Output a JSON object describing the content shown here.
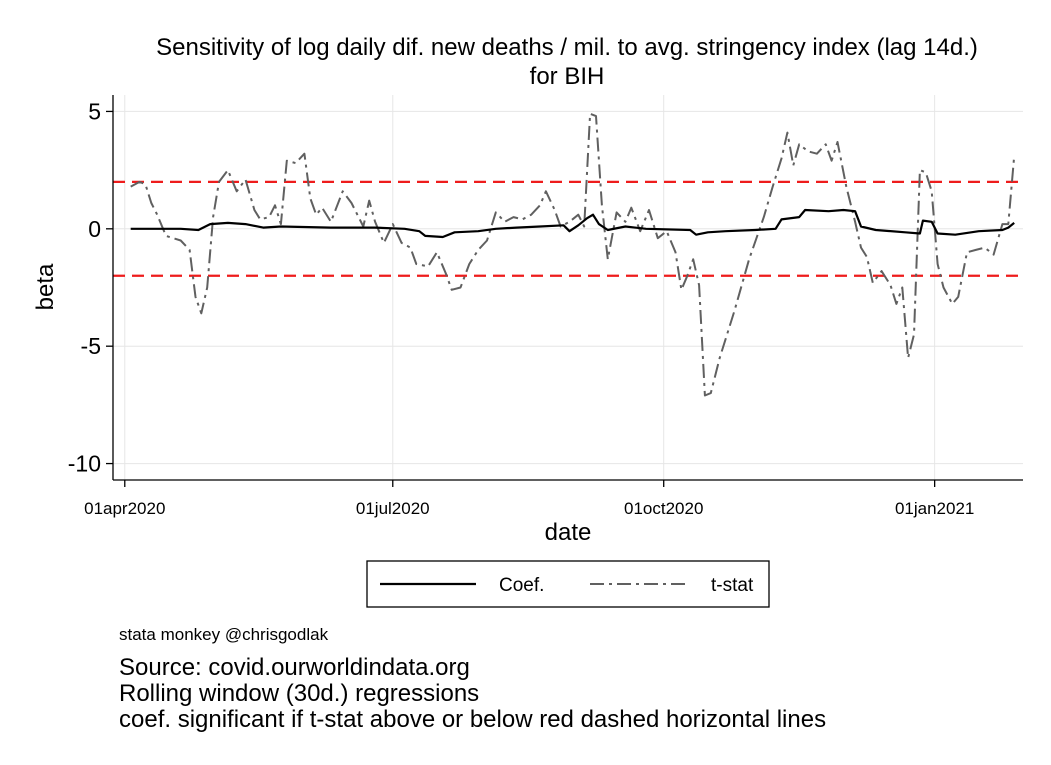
{
  "chart_data": {
    "type": "line",
    "title_lines": [
      "Sensitivity of log daily dif. new deaths / mil. to avg. stringency index (lag 14d.)",
      "for BIH"
    ],
    "xlabel": "date",
    "ylabel": "beta",
    "x_ticks": [
      "2020-04-01",
      "2020-07-01",
      "2020-10-01",
      "2021-01-01"
    ],
    "x_tick_labels": [
      "01apr2020",
      "01jul2020",
      "01oct2020",
      "01jan2021"
    ],
    "y_ticks": [
      5,
      0,
      -5,
      -10
    ],
    "y_tick_labels": [
      "5",
      "0",
      "-5",
      "-10"
    ],
    "xlim": [
      "2020-03-28",
      "2021-01-31"
    ],
    "ylim": [
      -10.7,
      5.7
    ],
    "grid": true,
    "reference_lines": [
      2,
      -2
    ],
    "reference_line_color": "#ee1c1c",
    "legend_position": "bottom",
    "series": [
      {
        "name": "Coef.",
        "color": "#000000",
        "style": "solid",
        "points": [
          [
            "2020-04-03",
            0.0
          ],
          [
            "2020-04-20",
            0.0
          ],
          [
            "2020-04-26",
            -0.05
          ],
          [
            "2020-04-30",
            0.2
          ],
          [
            "2020-05-06",
            0.25
          ],
          [
            "2020-05-12",
            0.2
          ],
          [
            "2020-05-18",
            0.05
          ],
          [
            "2020-05-24",
            0.1
          ],
          [
            "2020-06-10",
            0.05
          ],
          [
            "2020-06-25",
            0.05
          ],
          [
            "2020-07-05",
            0.0
          ],
          [
            "2020-07-10",
            -0.1
          ],
          [
            "2020-07-12",
            -0.3
          ],
          [
            "2020-07-18",
            -0.35
          ],
          [
            "2020-07-22",
            -0.15
          ],
          [
            "2020-07-30",
            -0.1
          ],
          [
            "2020-08-05",
            0.0
          ],
          [
            "2020-08-12",
            0.05
          ],
          [
            "2020-08-20",
            0.1
          ],
          [
            "2020-08-28",
            0.15
          ],
          [
            "2020-08-30",
            -0.1
          ],
          [
            "2020-09-02",
            0.15
          ],
          [
            "2020-09-05",
            0.45
          ],
          [
            "2020-09-07",
            0.6
          ],
          [
            "2020-09-09",
            0.2
          ],
          [
            "2020-09-12",
            -0.05
          ],
          [
            "2020-09-18",
            0.1
          ],
          [
            "2020-09-25",
            0.0
          ],
          [
            "2020-10-10",
            -0.05
          ],
          [
            "2020-10-12",
            -0.25
          ],
          [
            "2020-10-16",
            -0.15
          ],
          [
            "2020-10-22",
            -0.1
          ],
          [
            "2020-11-01",
            -0.05
          ],
          [
            "2020-11-08",
            0.0
          ],
          [
            "2020-11-10",
            0.4
          ],
          [
            "2020-11-16",
            0.5
          ],
          [
            "2020-11-18",
            0.8
          ],
          [
            "2020-11-26",
            0.75
          ],
          [
            "2020-12-01",
            0.8
          ],
          [
            "2020-12-05",
            0.75
          ],
          [
            "2020-12-07",
            0.1
          ],
          [
            "2020-12-12",
            -0.05
          ],
          [
            "2020-12-22",
            -0.15
          ],
          [
            "2020-12-27",
            -0.2
          ],
          [
            "2020-12-28",
            0.35
          ],
          [
            "2020-12-31",
            0.3
          ],
          [
            "2021-01-02",
            -0.2
          ],
          [
            "2021-01-08",
            -0.25
          ],
          [
            "2021-01-16",
            -0.1
          ],
          [
            "2021-01-24",
            -0.05
          ],
          [
            "2021-01-26",
            0.05
          ],
          [
            "2021-01-28",
            0.25
          ]
        ]
      },
      {
        "name": "t-stat",
        "color": "#606060",
        "style": "dashdot",
        "points": [
          [
            "2020-04-03",
            1.8
          ],
          [
            "2020-04-06",
            2.0
          ],
          [
            "2020-04-08",
            1.9
          ],
          [
            "2020-04-10",
            1.1
          ],
          [
            "2020-04-12",
            0.6
          ],
          [
            "2020-04-15",
            -0.3
          ],
          [
            "2020-04-20",
            -0.5
          ],
          [
            "2020-04-23",
            -0.9
          ],
          [
            "2020-04-25",
            -2.9
          ],
          [
            "2020-04-27",
            -3.6
          ],
          [
            "2020-04-29",
            -2.5
          ],
          [
            "2020-05-01",
            0.5
          ],
          [
            "2020-05-03",
            2.0
          ],
          [
            "2020-05-06",
            2.5
          ],
          [
            "2020-05-09",
            1.6
          ],
          [
            "2020-05-12",
            2.1
          ],
          [
            "2020-05-15",
            0.8
          ],
          [
            "2020-05-17",
            0.4
          ],
          [
            "2020-05-20",
            0.5
          ],
          [
            "2020-05-22",
            1.0
          ],
          [
            "2020-05-24",
            0.2
          ],
          [
            "2020-05-26",
            2.9
          ],
          [
            "2020-05-29",
            2.8
          ],
          [
            "2020-06-01",
            3.2
          ],
          [
            "2020-06-03",
            1.3
          ],
          [
            "2020-06-05",
            0.6
          ],
          [
            "2020-06-07",
            0.9
          ],
          [
            "2020-06-10",
            0.3
          ],
          [
            "2020-06-14",
            1.6
          ],
          [
            "2020-06-17",
            1.1
          ],
          [
            "2020-06-21",
            0.1
          ],
          [
            "2020-06-23",
            1.2
          ],
          [
            "2020-06-25",
            0.3
          ],
          [
            "2020-06-28",
            -0.6
          ],
          [
            "2020-07-01",
            0.2
          ],
          [
            "2020-07-04",
            -0.6
          ],
          [
            "2020-07-07",
            -0.8
          ],
          [
            "2020-07-09",
            -1.5
          ],
          [
            "2020-07-13",
            -1.6
          ],
          [
            "2020-07-16",
            -1.0
          ],
          [
            "2020-07-19",
            -1.9
          ],
          [
            "2020-07-21",
            -2.6
          ],
          [
            "2020-07-24",
            -2.5
          ],
          [
            "2020-07-27",
            -1.5
          ],
          [
            "2020-07-30",
            -0.9
          ],
          [
            "2020-08-02",
            -0.5
          ],
          [
            "2020-08-05",
            0.7
          ],
          [
            "2020-08-08",
            0.3
          ],
          [
            "2020-08-11",
            0.5
          ],
          [
            "2020-08-14",
            0.4
          ],
          [
            "2020-08-17",
            0.6
          ],
          [
            "2020-08-20",
            1.0
          ],
          [
            "2020-08-22",
            1.6
          ],
          [
            "2020-08-25",
            0.8
          ],
          [
            "2020-08-27",
            0.1
          ],
          [
            "2020-08-30",
            0.3
          ],
          [
            "2020-09-02",
            0.6
          ],
          [
            "2020-09-04",
            0.1
          ],
          [
            "2020-09-06",
            4.9
          ],
          [
            "2020-09-08",
            4.8
          ],
          [
            "2020-09-10",
            1.0
          ],
          [
            "2020-09-12",
            -1.3
          ],
          [
            "2020-09-15",
            0.7
          ],
          [
            "2020-09-18",
            0.3
          ],
          [
            "2020-09-20",
            0.9
          ],
          [
            "2020-09-23",
            -0.1
          ],
          [
            "2020-09-26",
            0.8
          ],
          [
            "2020-09-29",
            -0.4
          ],
          [
            "2020-10-02",
            -0.1
          ],
          [
            "2020-10-05",
            -1.0
          ],
          [
            "2020-10-07",
            -2.6
          ],
          [
            "2020-10-09",
            -2.0
          ],
          [
            "2020-10-11",
            -1.3
          ],
          [
            "2020-10-13",
            -2.4
          ],
          [
            "2020-10-15",
            -7.1
          ],
          [
            "2020-10-17",
            -7.0
          ],
          [
            "2020-10-20",
            -5.5
          ],
          [
            "2020-10-25",
            -3.5
          ],
          [
            "2020-10-30",
            -1.3
          ],
          [
            "2020-11-04",
            0.5
          ],
          [
            "2020-11-07",
            1.8
          ],
          [
            "2020-11-10",
            3.0
          ],
          [
            "2020-11-12",
            4.1
          ],
          [
            "2020-11-14",
            2.7
          ],
          [
            "2020-11-16",
            3.6
          ],
          [
            "2020-11-19",
            3.3
          ],
          [
            "2020-11-22",
            3.2
          ],
          [
            "2020-11-25",
            3.6
          ],
          [
            "2020-11-27",
            2.9
          ],
          [
            "2020-11-29",
            3.7
          ],
          [
            "2020-12-02",
            1.8
          ],
          [
            "2020-12-05",
            0.3
          ],
          [
            "2020-12-07",
            -0.8
          ],
          [
            "2020-12-09",
            -1.2
          ],
          [
            "2020-12-11",
            -2.3
          ],
          [
            "2020-12-14",
            -1.8
          ],
          [
            "2020-12-17",
            -2.4
          ],
          [
            "2020-12-19",
            -3.2
          ],
          [
            "2020-12-21",
            -2.5
          ],
          [
            "2020-12-23",
            -5.5
          ],
          [
            "2020-12-25",
            -4.5
          ],
          [
            "2020-12-27",
            2.5
          ],
          [
            "2020-12-29",
            2.4
          ],
          [
            "2020-12-31",
            1.6
          ],
          [
            "2021-01-02",
            -1.5
          ],
          [
            "2021-01-04",
            -2.5
          ],
          [
            "2021-01-07",
            -3.2
          ],
          [
            "2021-01-09",
            -2.9
          ],
          [
            "2021-01-12",
            -1.0
          ],
          [
            "2021-01-15",
            -0.9
          ],
          [
            "2021-01-18",
            -0.8
          ],
          [
            "2021-01-21",
            -1.1
          ],
          [
            "2021-01-24",
            0.2
          ],
          [
            "2021-01-26",
            0.2
          ],
          [
            "2021-01-28",
            3.1
          ]
        ]
      }
    ]
  },
  "footer": {
    "credit": "stata monkey @chrisgodlak",
    "notes": [
      "Source: covid.ourworldindata.org",
      "Rolling window (30d.) regressions",
      "coef. significant if t-stat above or below red dashed horizontal lines"
    ]
  }
}
